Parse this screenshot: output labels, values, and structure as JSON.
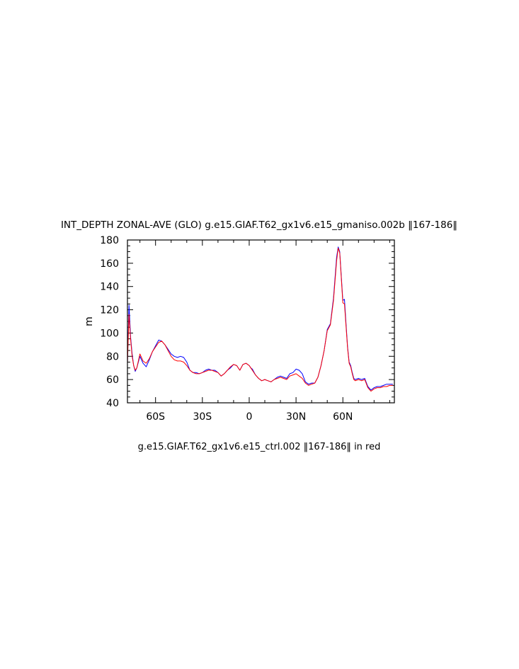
{
  "chart_data": {
    "type": "line",
    "title": "INT_DEPTH ZONAL-AVE (GLO) g.e15.GIAF.T62_gx1v6.e15_gmaniso.002b ‖167-186‖",
    "xlabel": "g.e15.GIAF.T62_gx1v6.e15_ctrl.002 ‖167-186‖ in red",
    "ylabel": "m",
    "xlim": [
      -78,
      93
    ],
    "ylim": [
      40,
      180
    ],
    "x_ticks": [
      -60,
      -30,
      0,
      30,
      60
    ],
    "x_tick_labels": [
      "60S",
      "30S",
      "0",
      "30N",
      "60N"
    ],
    "y_ticks": [
      40,
      60,
      80,
      100,
      120,
      140,
      160,
      180
    ],
    "y_tick_labels": [
      "40",
      "60",
      "80",
      "100",
      "120",
      "140",
      "160",
      "180"
    ],
    "grid": false,
    "series": [
      {
        "color": "#0000ff",
        "x": [
          -78,
          -77,
          -76,
          -75,
          -74,
          -73,
          -72,
          -70,
          -68,
          -66,
          -64,
          -62,
          -60,
          -58,
          -56,
          -54,
          -52,
          -50,
          -48,
          -46,
          -44,
          -42,
          -40,
          -38,
          -36,
          -34,
          -32,
          -30,
          -28,
          -26,
          -24,
          -22,
          -20,
          -18,
          -16,
          -14,
          -12,
          -10,
          -8,
          -6,
          -4,
          -2,
          -1,
          0,
          1,
          2,
          4,
          6,
          8,
          10,
          12,
          14,
          16,
          18,
          20,
          22,
          24,
          26,
          28,
          30,
          32,
          34,
          36,
          38,
          40,
          42,
          44,
          46,
          48,
          50,
          52,
          54,
          56,
          57,
          58,
          60,
          61,
          62,
          63,
          64,
          65,
          66,
          67,
          68,
          70,
          72,
          74,
          76,
          78,
          80,
          82,
          84,
          86,
          88,
          90,
          92
        ],
        "values": [
          75,
          124,
          97,
          82,
          72,
          67,
          70,
          80,
          74,
          71,
          77,
          84,
          89,
          94,
          93,
          90,
          86,
          82,
          80,
          79,
          80,
          79,
          75,
          68,
          66,
          66,
          65,
          66,
          68,
          69,
          68,
          68,
          66,
          63,
          65,
          68,
          70,
          73,
          72,
          68,
          73,
          74,
          73,
          72,
          70,
          69,
          64,
          61,
          59,
          60,
          59,
          58,
          60,
          62,
          63,
          62,
          61,
          65,
          66,
          69,
          68,
          65,
          58,
          56,
          57,
          57,
          62,
          72,
          85,
          103,
          108,
          130,
          165,
          174,
          170,
          128,
          129,
          108,
          88,
          75,
          72,
          66,
          61,
          60,
          61,
          60,
          61,
          54,
          51,
          53,
          54,
          54,
          55,
          56,
          56,
          56
        ]
      },
      {
        "color": "#ff0000",
        "x": [
          -78,
          -77,
          -76,
          -75,
          -74,
          -73,
          -72,
          -70,
          -68,
          -66,
          -64,
          -62,
          -60,
          -58,
          -56,
          -54,
          -52,
          -50,
          -48,
          -46,
          -44,
          -42,
          -40,
          -38,
          -36,
          -34,
          -32,
          -30,
          -28,
          -26,
          -24,
          -22,
          -20,
          -18,
          -16,
          -14,
          -12,
          -10,
          -8,
          -6,
          -4,
          -2,
          -1,
          0,
          1,
          2,
          4,
          6,
          8,
          10,
          12,
          14,
          16,
          18,
          20,
          22,
          24,
          26,
          28,
          30,
          32,
          34,
          36,
          38,
          40,
          42,
          44,
          46,
          48,
          50,
          52,
          54,
          56,
          57,
          58,
          60,
          61,
          62,
          63,
          64,
          65,
          66,
          67,
          68,
          70,
          72,
          74,
          76,
          78,
          80,
          82,
          84,
          86,
          88,
          90,
          92
        ],
        "values": [
          74,
          116,
          95,
          80,
          72,
          68,
          70,
          82,
          76,
          74,
          78,
          84,
          88,
          92,
          93,
          90,
          85,
          80,
          77,
          76,
          76,
          75,
          72,
          68,
          66,
          65,
          65,
          66,
          67,
          68,
          68,
          67,
          66,
          63,
          65,
          68,
          71,
          73,
          72,
          68,
          73,
          74,
          73,
          72,
          70,
          68,
          64,
          61,
          59,
          60,
          59,
          58,
          60,
          61,
          62,
          61,
          60,
          63,
          64,
          65,
          63,
          61,
          57,
          55,
          56,
          57,
          62,
          72,
          85,
          102,
          107,
          128,
          162,
          173,
          169,
          126,
          125,
          106,
          87,
          74,
          71,
          65,
          60,
          59,
          60,
          59,
          60,
          53,
          50,
          52,
          53,
          53,
          54,
          54,
          55,
          55
        ]
      }
    ]
  }
}
